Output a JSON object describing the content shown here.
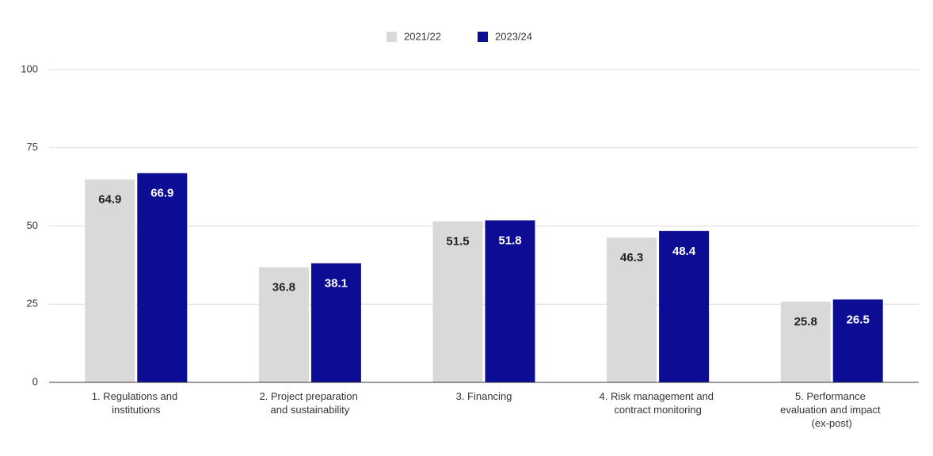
{
  "chart_data": {
    "type": "bar",
    "categories": [
      "1. Regulations and institutions",
      "2. Project preparation and sustainability",
      "3. Financing",
      "4. Risk management and contract monitoring",
      "5. Performance evaluation and impact (ex-post)"
    ],
    "series": [
      {
        "name": "2021/22",
        "color": "#d9d9d9",
        "values": [
          64.9,
          36.8,
          51.5,
          46.3,
          25.8
        ]
      },
      {
        "name": "2023/24",
        "color": "#0c0c94",
        "values": [
          66.9,
          38.1,
          51.8,
          48.4,
          26.5
        ]
      }
    ],
    "ylim": [
      0,
      100
    ],
    "yticks": [
      0,
      25,
      50,
      75,
      100
    ],
    "grid": true,
    "legend": "top"
  }
}
